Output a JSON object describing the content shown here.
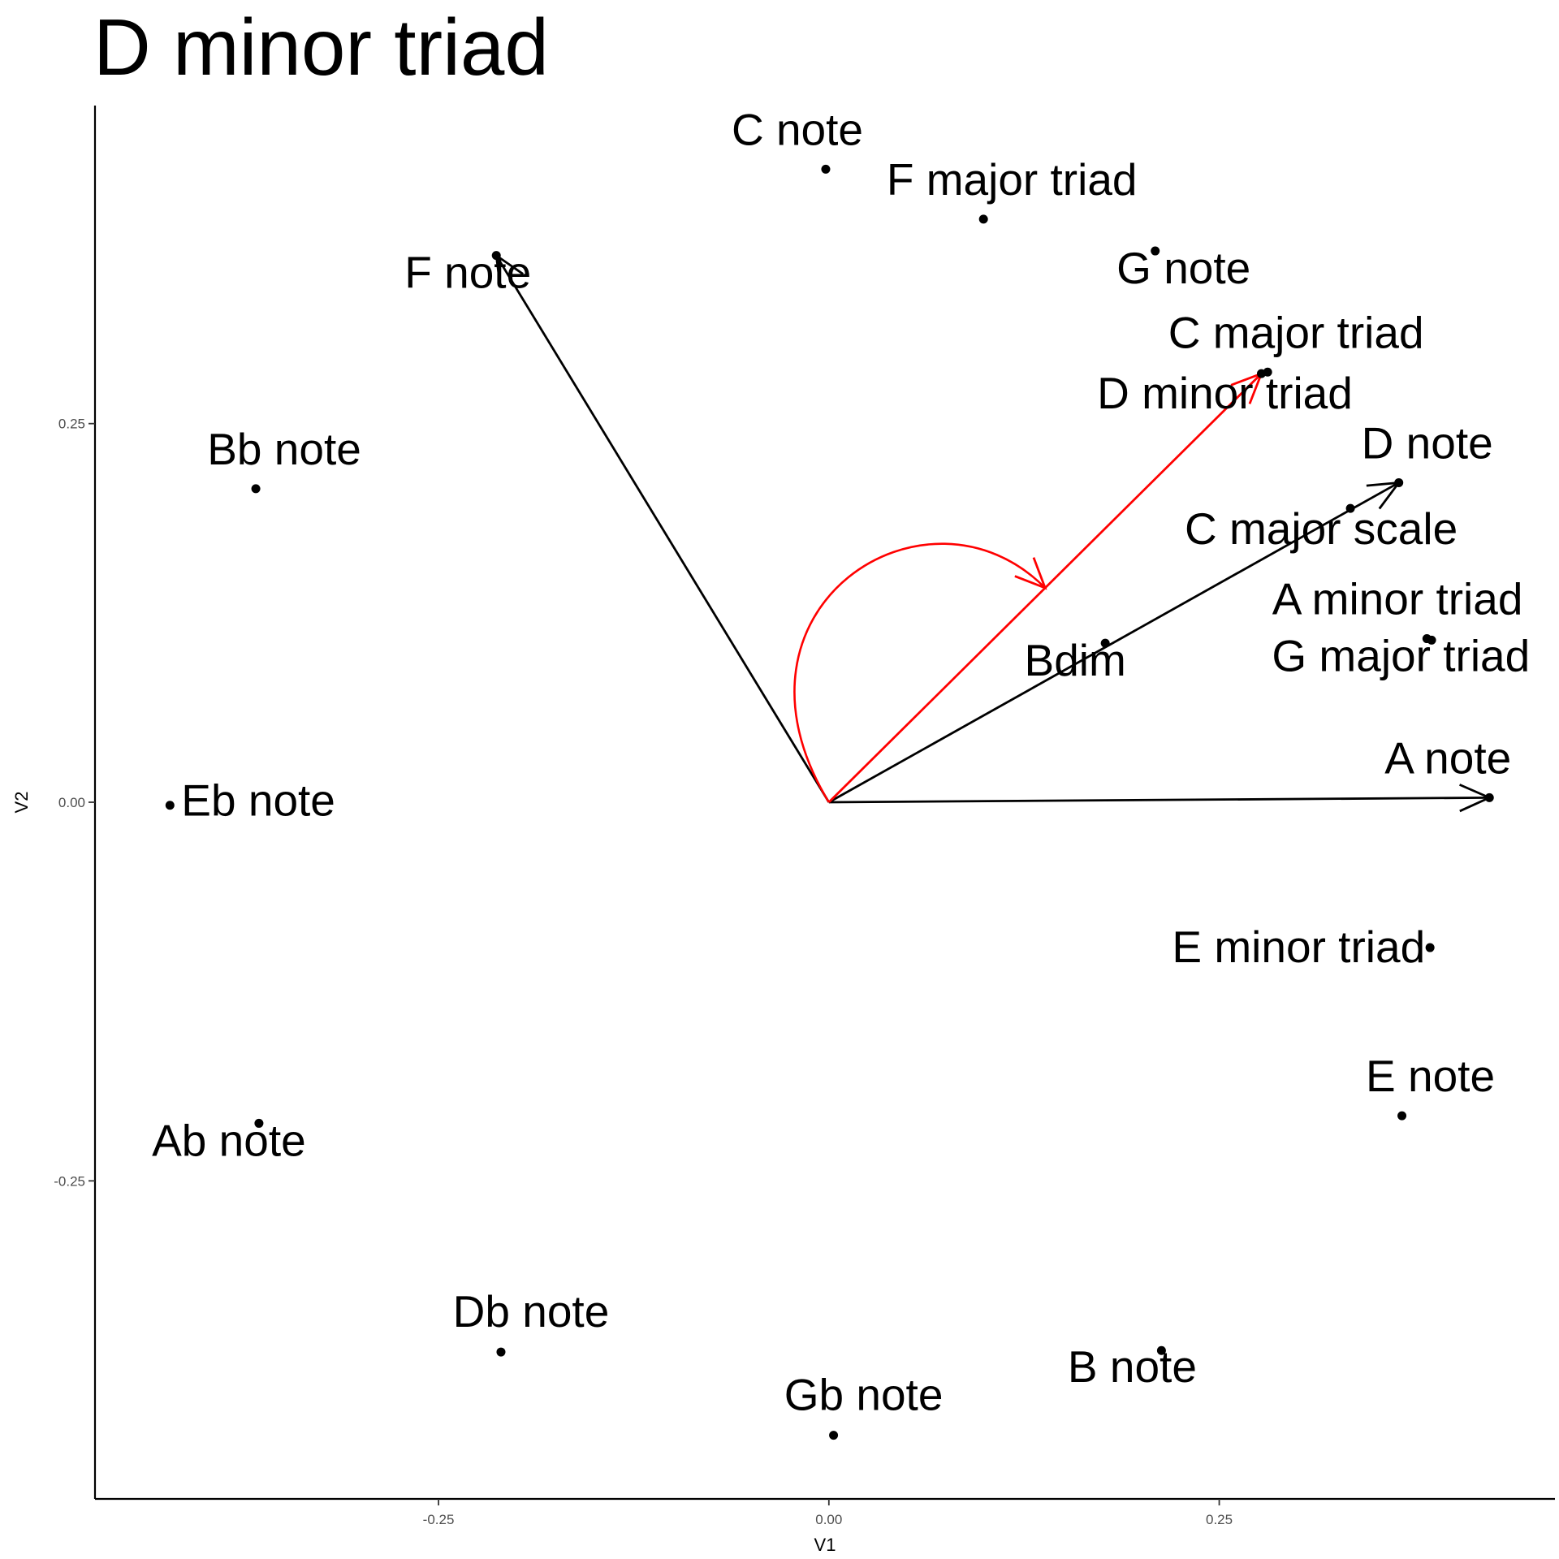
{
  "chart_data": {
    "type": "scatter",
    "title": "D minor triad",
    "xlabel": "V1",
    "ylabel": "V2",
    "xlim": [
      -0.47,
      0.465
    ],
    "ylim": [
      -0.46,
      0.46
    ],
    "grid": false,
    "x_ticks": [
      {
        "value": -0.25,
        "label": "-0.25"
      },
      {
        "value": 0.0,
        "label": "0.00"
      },
      {
        "value": 0.25,
        "label": "0.25"
      }
    ],
    "y_ticks": [
      {
        "value": 0.25,
        "label": "0.25"
      },
      {
        "value": 0.0,
        "label": "0.00"
      },
      {
        "value": -0.25,
        "label": "-0.25"
      }
    ],
    "points": [
      {
        "label": "C note",
        "x": -0.002,
        "y": 0.418
      },
      {
        "label": "F major triad",
        "x": 0.099,
        "y": 0.385
      },
      {
        "label": "F note",
        "x": -0.213,
        "y": 0.361
      },
      {
        "label": "G note",
        "x": 0.209,
        "y": 0.364
      },
      {
        "label": "C major triad",
        "x": 0.281,
        "y": 0.284
      },
      {
        "label": "D minor triad",
        "x": 0.277,
        "y": 0.283
      },
      {
        "label": "D note",
        "x": 0.365,
        "y": 0.211
      },
      {
        "label": "C major scale",
        "x": 0.334,
        "y": 0.194
      },
      {
        "label": "Bb note",
        "x": -0.367,
        "y": 0.207
      },
      {
        "label": "A minor triad",
        "x": 0.386,
        "y": 0.107
      },
      {
        "label": "G major triad",
        "x": 0.383,
        "y": 0.108
      },
      {
        "label": "Bdim",
        "x": 0.177,
        "y": 0.105
      },
      {
        "label": "A note",
        "x": 0.423,
        "y": 0.003
      },
      {
        "label": "Eb note",
        "x": -0.422,
        "y": -0.002
      },
      {
        "label": "E minor triad",
        "x": 0.385,
        "y": -0.096
      },
      {
        "label": "E note",
        "x": 0.367,
        "y": -0.207
      },
      {
        "label": "Ab note",
        "x": -0.365,
        "y": -0.212
      },
      {
        "label": "B note",
        "x": 0.213,
        "y": -0.362
      },
      {
        "label": "Db note",
        "x": -0.21,
        "y": -0.363
      },
      {
        "label": "Gb note",
        "x": 0.003,
        "y": -0.418
      }
    ],
    "arrows": [
      {
        "to": "F note",
        "color": "#000000"
      },
      {
        "to": "D note",
        "color": "#000000"
      },
      {
        "to": "A note",
        "color": "#000000"
      },
      {
        "to": "D minor triad",
        "color": "#ff0000"
      }
    ],
    "curved_arrow": {
      "color": "#ff0000"
    }
  }
}
